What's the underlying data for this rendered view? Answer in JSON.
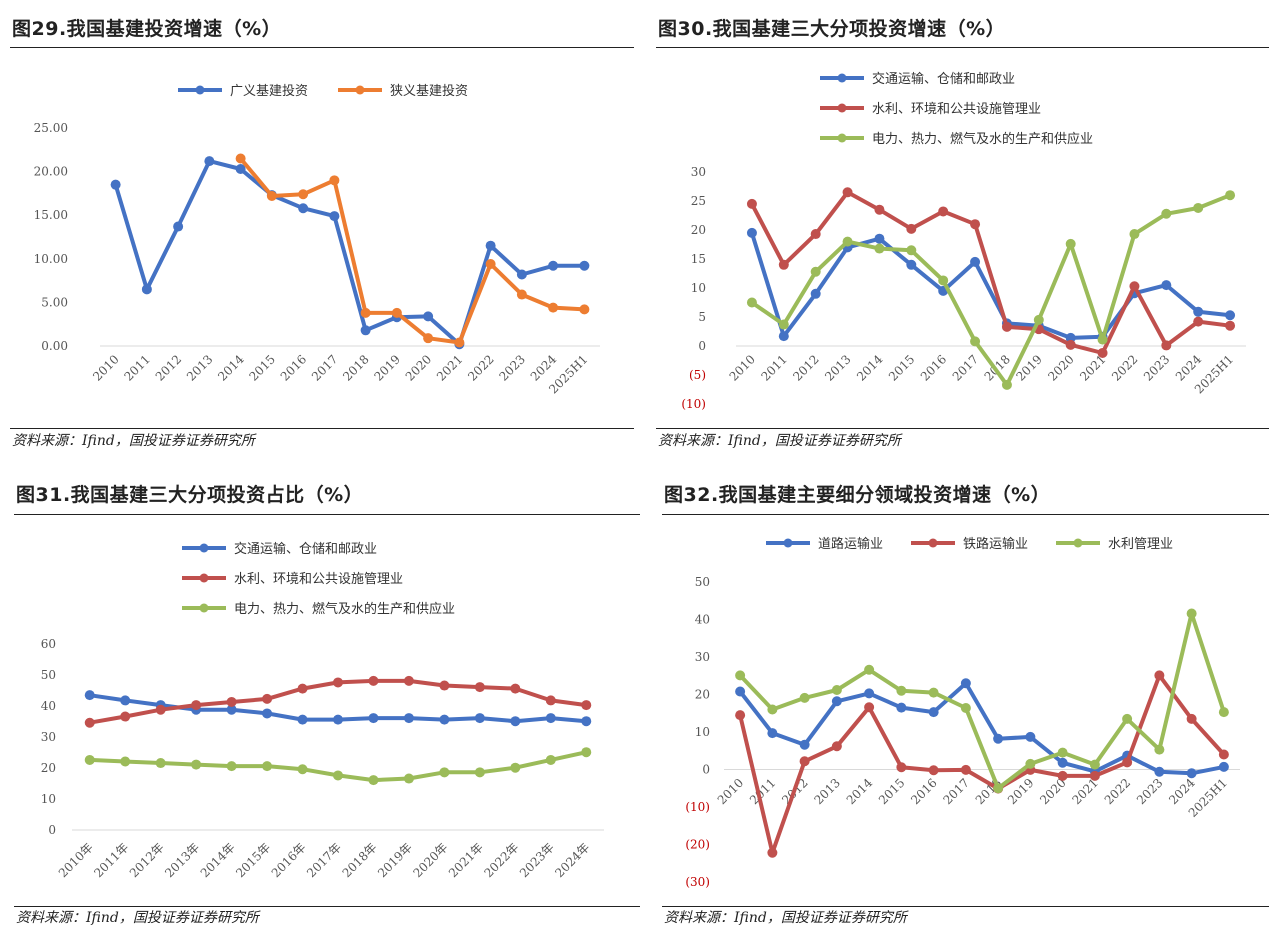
{
  "panels": [
    {
      "title": "图29.我国基建投资增速（%）",
      "source": "资料来源：Ifind，国投证券证券研究所",
      "chart_data": {
        "type": "line",
        "categories": [
          "2010",
          "2011",
          "2012",
          "2013",
          "2014",
          "2015",
          "2016",
          "2017",
          "2018",
          "2019",
          "2020",
          "2021",
          "2022",
          "2023",
          "2024",
          "2025H1"
        ],
        "ylim": [
          0,
          25
        ],
        "ytick_labels": [
          "0.00",
          "5.00",
          "10.00",
          "15.00",
          "20.00",
          "25.00"
        ],
        "legend_position": "top",
        "series": [
          {
            "name": "广义基建投资",
            "color": "#4472C4",
            "values": [
              18.5,
              6.5,
              13.7,
              21.2,
              20.3,
              17.3,
              15.8,
              14.9,
              1.8,
              3.3,
              3.4,
              0.2,
              11.5,
              8.2,
              9.2,
              9.2
            ]
          },
          {
            "name": "狭义基建投资",
            "color": "#ED7D31",
            "values": [
              null,
              null,
              null,
              null,
              21.5,
              17.2,
              17.4,
              19.0,
              3.8,
              3.8,
              0.9,
              0.4,
              9.4,
              5.9,
              4.4,
              4.2
            ]
          }
        ]
      }
    },
    {
      "title": "图30.我国基建三大分项投资增速（%）",
      "source": "资料来源：Ifind，国投证券证券研究所",
      "chart_data": {
        "type": "line",
        "categories": [
          "2010",
          "2011",
          "2012",
          "2013",
          "2014",
          "2015",
          "2016",
          "2017",
          "2018",
          "2019",
          "2020",
          "2021",
          "2022",
          "2023",
          "2024",
          "2025H1"
        ],
        "ylim": [
          -10,
          30
        ],
        "ytick_labels": [
          "(10)",
          "(5)",
          "0",
          "5",
          "10",
          "15",
          "20",
          "25",
          "30"
        ],
        "negative_tick_color": "#C00000",
        "legend_position": "top",
        "series": [
          {
            "name": "交通运输、仓储和邮政业",
            "color": "#4472C4",
            "values": [
              19.5,
              1.7,
              9.0,
              17.0,
              18.5,
              14.0,
              9.5,
              14.5,
              3.9,
              3.5,
              1.4,
              1.6,
              9.1,
              10.5,
              5.9,
              5.3
            ]
          },
          {
            "name": "水利、环境和公共设施管理业",
            "color": "#C0504D",
            "values": [
              24.5,
              14.0,
              19.3,
              26.5,
              23.5,
              20.2,
              23.2,
              21.0,
              3.3,
              2.9,
              0.2,
              -1.2,
              10.3,
              0.1,
              4.2,
              3.5
            ]
          },
          {
            "name": "电力、热力、燃气及水的生产和供应业",
            "color": "#9BBB59",
            "values": [
              7.5,
              3.7,
              12.8,
              18.0,
              16.8,
              16.5,
              11.3,
              0.8,
              -6.7,
              4.5,
              17.6,
              1.1,
              19.3,
              22.8,
              23.8,
              26.0
            ]
          }
        ]
      }
    },
    {
      "title": "图31.我国基建三大分项投资占比（%）",
      "source": "资料来源：Ifind，国投证券证券研究所",
      "chart_data": {
        "type": "line",
        "categories": [
          "2010年",
          "2011年",
          "2012年",
          "2013年",
          "2014年",
          "2015年",
          "2016年",
          "2017年",
          "2018年",
          "2019年",
          "2020年",
          "2021年",
          "2022年",
          "2023年",
          "2024年"
        ],
        "ylim": [
          0,
          60
        ],
        "ytick_labels": [
          "0",
          "10",
          "20",
          "30",
          "40",
          "50",
          "60"
        ],
        "legend_position": "top",
        "series": [
          {
            "name": "交通运输、仓储和邮政业",
            "color": "#4472C4",
            "values": [
              43.5,
              41.8,
              40.3,
              38.8,
              38.8,
              37.6,
              35.6,
              35.6,
              36.1,
              36.1,
              35.6,
              36.1,
              35.1,
              36.1,
              35.1
            ]
          },
          {
            "name": "水利、环境和公共设施管理业",
            "color": "#C0504D",
            "values": [
              34.6,
              36.6,
              38.8,
              40.3,
              41.3,
              42.3,
              45.6,
              47.6,
              48.1,
              48.1,
              46.6,
              46.1,
              45.6,
              41.8,
              40.3
            ]
          },
          {
            "name": "电力、热力、燃气及水的生产和供应业",
            "color": "#9BBB59",
            "values": [
              22.6,
              22.1,
              21.6,
              21.1,
              20.6,
              20.6,
              19.6,
              17.6,
              16.1,
              16.6,
              18.6,
              18.6,
              20.1,
              22.6,
              25.1
            ]
          }
        ]
      }
    },
    {
      "title": "图32.我国基建主要细分领域投资增速（%）",
      "source": "资料来源：Ifind，国投证券证券研究所",
      "chart_data": {
        "type": "line",
        "categories": [
          "2010",
          "2011",
          "2012",
          "2013",
          "2014",
          "2015",
          "2016",
          "2017",
          "2018",
          "2019",
          "2020",
          "2021",
          "2022",
          "2023",
          "2024",
          "2025H1"
        ],
        "ylim": [
          -30,
          50
        ],
        "ytick_labels": [
          "(30)",
          "(20)",
          "(10)",
          "0",
          "10",
          "20",
          "30",
          "40",
          "50"
        ],
        "negative_tick_color": "#C00000",
        "legend_position": "top",
        "series": [
          {
            "name": "道路运输业",
            "color": "#4472C4",
            "values": [
              20.8,
              9.7,
              6.6,
              18.2,
              20.3,
              16.5,
              15.3,
              23.0,
              8.2,
              8.7,
              1.8,
              -0.5,
              3.7,
              -0.6,
              -1.0,
              0.7
            ]
          },
          {
            "name": "铁路运输业",
            "color": "#C0504D",
            "values": [
              14.5,
              -22.2,
              2.2,
              6.2,
              16.6,
              0.6,
              -0.2,
              -0.1,
              -5.1,
              -0.1,
              -1.7,
              -1.7,
              1.9,
              25.1,
              13.5,
              4.0
            ]
          },
          {
            "name": "水利管理业",
            "color": "#9BBB59",
            "values": [
              25.1,
              16.0,
              19.1,
              21.2,
              26.6,
              21.0,
              20.5,
              16.4,
              -5.0,
              1.5,
              4.5,
              1.3,
              13.5,
              5.3,
              41.6,
              15.3
            ]
          }
        ]
      }
    }
  ]
}
